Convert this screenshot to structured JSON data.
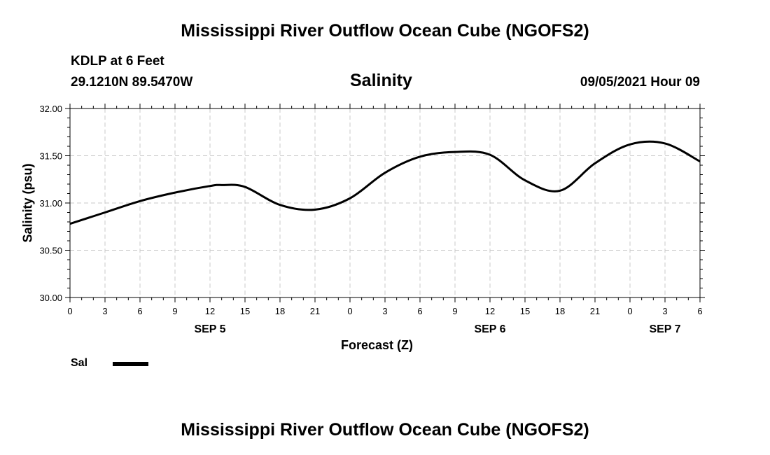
{
  "header": {
    "title": "Mississippi River Outflow Ocean Cube (NGOFS2)",
    "station": "KDLP at 6 Feet",
    "coords": "29.1210N  89.5470W",
    "variable": "Salinity",
    "datetime": "09/05/2021 Hour 09"
  },
  "footer": {
    "title": "Mississippi River Outflow Ocean Cube (NGOFS2)"
  },
  "legend": {
    "label": "Sal"
  },
  "colors": {
    "line": "#000000",
    "grid": "#c8c8c8"
  },
  "chart_data": {
    "type": "line",
    "title": "Salinity",
    "xlabel": "Forecast (Z)",
    "ylabel": "Salinity (psu)",
    "ylim": [
      30.0,
      32.0
    ],
    "yticks": [
      "30.00",
      "30.50",
      "31.00",
      "31.50",
      "32.00"
    ],
    "xlim": [
      0,
      54
    ],
    "xticks": [
      {
        "h": 0,
        "label": "0"
      },
      {
        "h": 3,
        "label": "3"
      },
      {
        "h": 6,
        "label": "6"
      },
      {
        "h": 9,
        "label": "9"
      },
      {
        "h": 12,
        "label": "12"
      },
      {
        "h": 15,
        "label": "15"
      },
      {
        "h": 18,
        "label": "18"
      },
      {
        "h": 21,
        "label": "21"
      },
      {
        "h": 24,
        "label": "0"
      },
      {
        "h": 27,
        "label": "3"
      },
      {
        "h": 30,
        "label": "6"
      },
      {
        "h": 33,
        "label": "9"
      },
      {
        "h": 36,
        "label": "12"
      },
      {
        "h": 39,
        "label": "15"
      },
      {
        "h": 42,
        "label": "18"
      },
      {
        "h": 45,
        "label": "21"
      },
      {
        "h": 48,
        "label": "0"
      },
      {
        "h": 51,
        "label": "3"
      },
      {
        "h": 54,
        "label": "6"
      }
    ],
    "day_labels": [
      {
        "h": 12,
        "label": "SEP 5"
      },
      {
        "h": 36,
        "label": "SEP 6"
      },
      {
        "h": 51,
        "label": "SEP 7"
      }
    ],
    "grid": true,
    "series": [
      {
        "name": "Sal",
        "x": [
          0,
          3,
          6,
          9,
          12,
          13,
          15,
          18,
          21,
          24,
          27,
          30,
          33,
          36,
          39,
          42,
          45,
          48,
          51,
          54
        ],
        "y": [
          30.78,
          30.9,
          31.02,
          31.11,
          31.18,
          31.19,
          31.17,
          30.98,
          30.93,
          31.05,
          31.32,
          31.49,
          31.54,
          31.51,
          31.24,
          31.13,
          31.42,
          31.62,
          31.63,
          31.44
        ]
      }
    ]
  }
}
